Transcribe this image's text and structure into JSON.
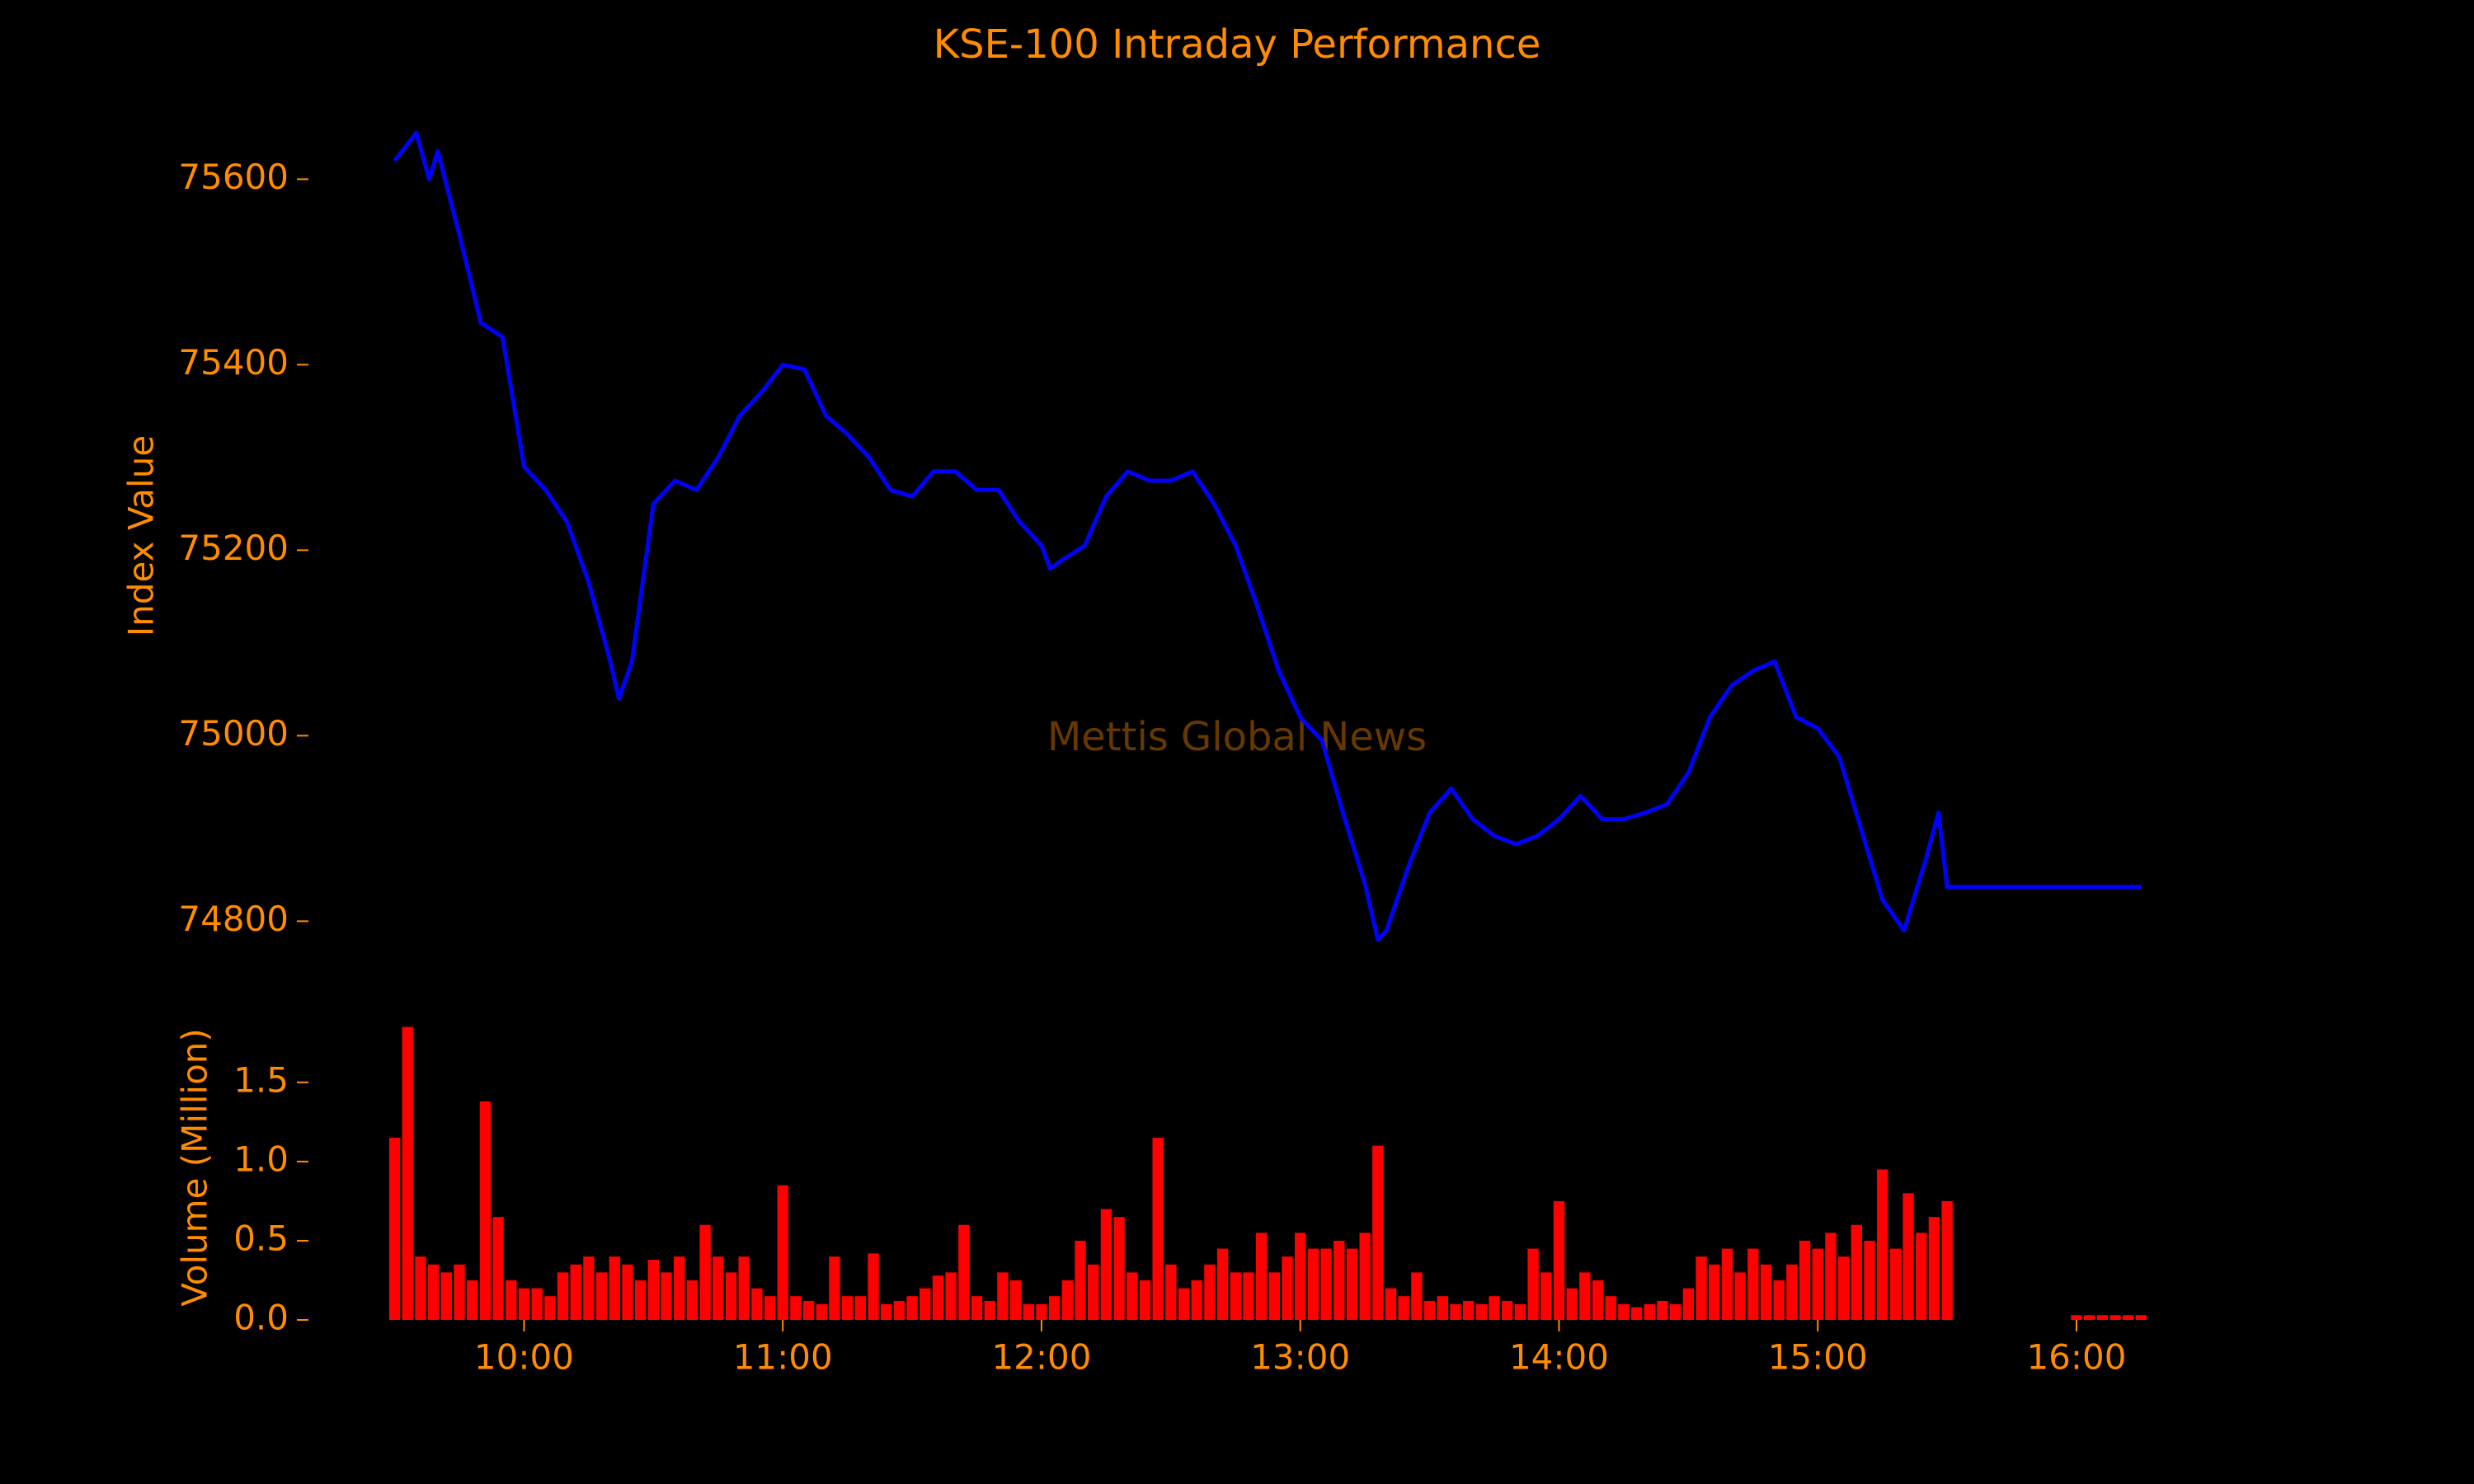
{
  "chart_data": [
    {
      "type": "line",
      "title": "KSE-100 Intraday Performance",
      "ylabel": "Index Value",
      "watermark": "Mettis Global News",
      "text_color": "#ff8c00",
      "background": "#000000",
      "color": "#0000ff",
      "x": [
        "09:30",
        "09:35",
        "09:38",
        "09:40",
        "09:45",
        "09:50",
        "09:55",
        "10:00",
        "10:05",
        "10:10",
        "10:15",
        "10:20",
        "10:22",
        "10:25",
        "10:30",
        "10:35",
        "10:40",
        "10:45",
        "10:50",
        "10:55",
        "11:00",
        "11:05",
        "11:10",
        "11:15",
        "11:20",
        "11:25",
        "11:30",
        "11:35",
        "11:40",
        "11:45",
        "11:50",
        "11:55",
        "12:00",
        "12:02",
        "12:05",
        "12:10",
        "12:15",
        "12:20",
        "12:25",
        "12:30",
        "12:35",
        "12:40",
        "12:45",
        "12:50",
        "12:55",
        "13:00",
        "13:05",
        "13:10",
        "13:15",
        "13:18",
        "13:20",
        "13:25",
        "13:30",
        "13:35",
        "13:40",
        "13:45",
        "13:50",
        "13:55",
        "14:00",
        "14:05",
        "14:10",
        "14:15",
        "14:20",
        "14:25",
        "14:30",
        "14:35",
        "14:40",
        "14:45",
        "14:50",
        "14:55",
        "15:00",
        "15:05",
        "15:10",
        "15:15",
        "15:20",
        "15:25",
        "15:28",
        "15:30",
        "16:15"
      ],
      "values": [
        75620,
        75650,
        75600,
        75630,
        75540,
        75445,
        75430,
        75290,
        75265,
        75230,
        75165,
        75080,
        75040,
        75080,
        75250,
        75275,
        75265,
        75300,
        75345,
        75370,
        75400,
        75395,
        75345,
        75325,
        75300,
        75265,
        75258,
        75285,
        75285,
        75265,
        75265,
        75230,
        75205,
        75180,
        75190,
        75205,
        75258,
        75285,
        75275,
        75275,
        75285,
        75250,
        75205,
        75140,
        75070,
        75020,
        74995,
        74915,
        74840,
        74780,
        74790,
        74858,
        74917,
        74943,
        74910,
        74892,
        74883,
        74892,
        74910,
        74935,
        74910,
        74910,
        74917,
        74926,
        74960,
        75020,
        75054,
        75070,
        75080,
        75020,
        75008,
        74977,
        74900,
        74823,
        74790,
        74866,
        74917,
        74837,
        74837
      ],
      "xlim": [
        "09:10",
        "16:35"
      ],
      "ylim": [
        74715,
        75715
      ],
      "yticks": [
        74800,
        75000,
        75200,
        75400,
        75600
      ]
    },
    {
      "type": "bar",
      "ylabel": "Volume (Million)",
      "color": "#ff0000",
      "x": [
        "09:30",
        "09:33",
        "09:36",
        "09:39",
        "09:42",
        "09:45",
        "09:48",
        "09:51",
        "09:54",
        "09:57",
        "10:00",
        "10:03",
        "10:06",
        "10:09",
        "10:12",
        "10:15",
        "10:18",
        "10:21",
        "10:24",
        "10:27",
        "10:30",
        "10:33",
        "10:36",
        "10:39",
        "10:42",
        "10:45",
        "10:48",
        "10:51",
        "10:54",
        "10:57",
        "11:00",
        "11:03",
        "11:06",
        "11:09",
        "11:12",
        "11:15",
        "11:18",
        "11:21",
        "11:24",
        "11:27",
        "11:30",
        "11:33",
        "11:36",
        "11:39",
        "11:42",
        "11:45",
        "11:48",
        "11:51",
        "11:54",
        "11:57",
        "12:00",
        "12:03",
        "12:06",
        "12:09",
        "12:12",
        "12:15",
        "12:18",
        "12:21",
        "12:24",
        "12:27",
        "12:30",
        "12:33",
        "12:36",
        "12:39",
        "12:42",
        "12:45",
        "12:48",
        "12:51",
        "12:54",
        "12:57",
        "13:00",
        "13:03",
        "13:06",
        "13:09",
        "13:12",
        "13:15",
        "13:18",
        "13:21",
        "13:24",
        "13:27",
        "13:30",
        "13:33",
        "13:36",
        "13:39",
        "13:42",
        "13:45",
        "13:48",
        "13:51",
        "13:54",
        "13:57",
        "14:00",
        "14:03",
        "14:06",
        "14:09",
        "14:12",
        "14:15",
        "14:18",
        "14:21",
        "14:24",
        "14:27",
        "14:30",
        "14:33",
        "14:36",
        "14:39",
        "14:42",
        "14:45",
        "14:48",
        "14:51",
        "14:54",
        "14:57",
        "15:00",
        "15:03",
        "15:06",
        "15:09",
        "15:12",
        "15:15",
        "15:18",
        "15:21",
        "15:24",
        "15:27",
        "15:30",
        "16:00",
        "16:03",
        "16:06",
        "16:09",
        "16:12",
        "16:15"
      ],
      "values": [
        1.15,
        1.85,
        0.4,
        0.35,
        0.3,
        0.35,
        0.25,
        1.38,
        0.65,
        0.25,
        0.2,
        0.2,
        0.15,
        0.3,
        0.35,
        0.4,
        0.3,
        0.4,
        0.35,
        0.25,
        0.38,
        0.3,
        0.4,
        0.25,
        0.6,
        0.4,
        0.3,
        0.4,
        0.2,
        0.15,
        0.85,
        0.15,
        0.12,
        0.1,
        0.4,
        0.15,
        0.15,
        0.42,
        0.1,
        0.12,
        0.15,
        0.2,
        0.28,
        0.3,
        0.6,
        0.15,
        0.12,
        0.3,
        0.25,
        0.1,
        0.1,
        0.15,
        0.25,
        0.5,
        0.35,
        0.7,
        0.65,
        0.3,
        0.25,
        1.15,
        0.35,
        0.2,
        0.25,
        0.35,
        0.45,
        0.3,
        0.3,
        0.55,
        0.3,
        0.4,
        0.55,
        0.45,
        0.45,
        0.5,
        0.45,
        0.55,
        1.1,
        0.2,
        0.15,
        0.3,
        0.12,
        0.15,
        0.1,
        0.12,
        0.1,
        0.15,
        0.12,
        0.1,
        0.45,
        0.3,
        0.75,
        0.2,
        0.3,
        0.25,
        0.15,
        0.1,
        0.08,
        0.1,
        0.12,
        0.1,
        0.2,
        0.4,
        0.35,
        0.45,
        0.3,
        0.45,
        0.35,
        0.25,
        0.35,
        0.5,
        0.45,
        0.55,
        0.4,
        0.6,
        0.5,
        0.95,
        0.45,
        0.8,
        0.55,
        0.65,
        0.75,
        0.03,
        0.03,
        0.03,
        0.03,
        0.03,
        0.03
      ],
      "xlim": [
        "09:10",
        "16:35"
      ],
      "ylim": [
        0,
        1.9
      ],
      "yticks": [
        {
          "value": 0,
          "label": "0.0"
        },
        0.5,
        {
          "value": 1,
          "label": "1.0"
        },
        1.5
      ],
      "xticks": [
        "10:00",
        "11:00",
        "12:00",
        "13:00",
        "14:00",
        "15:00",
        "16:00"
      ]
    }
  ]
}
